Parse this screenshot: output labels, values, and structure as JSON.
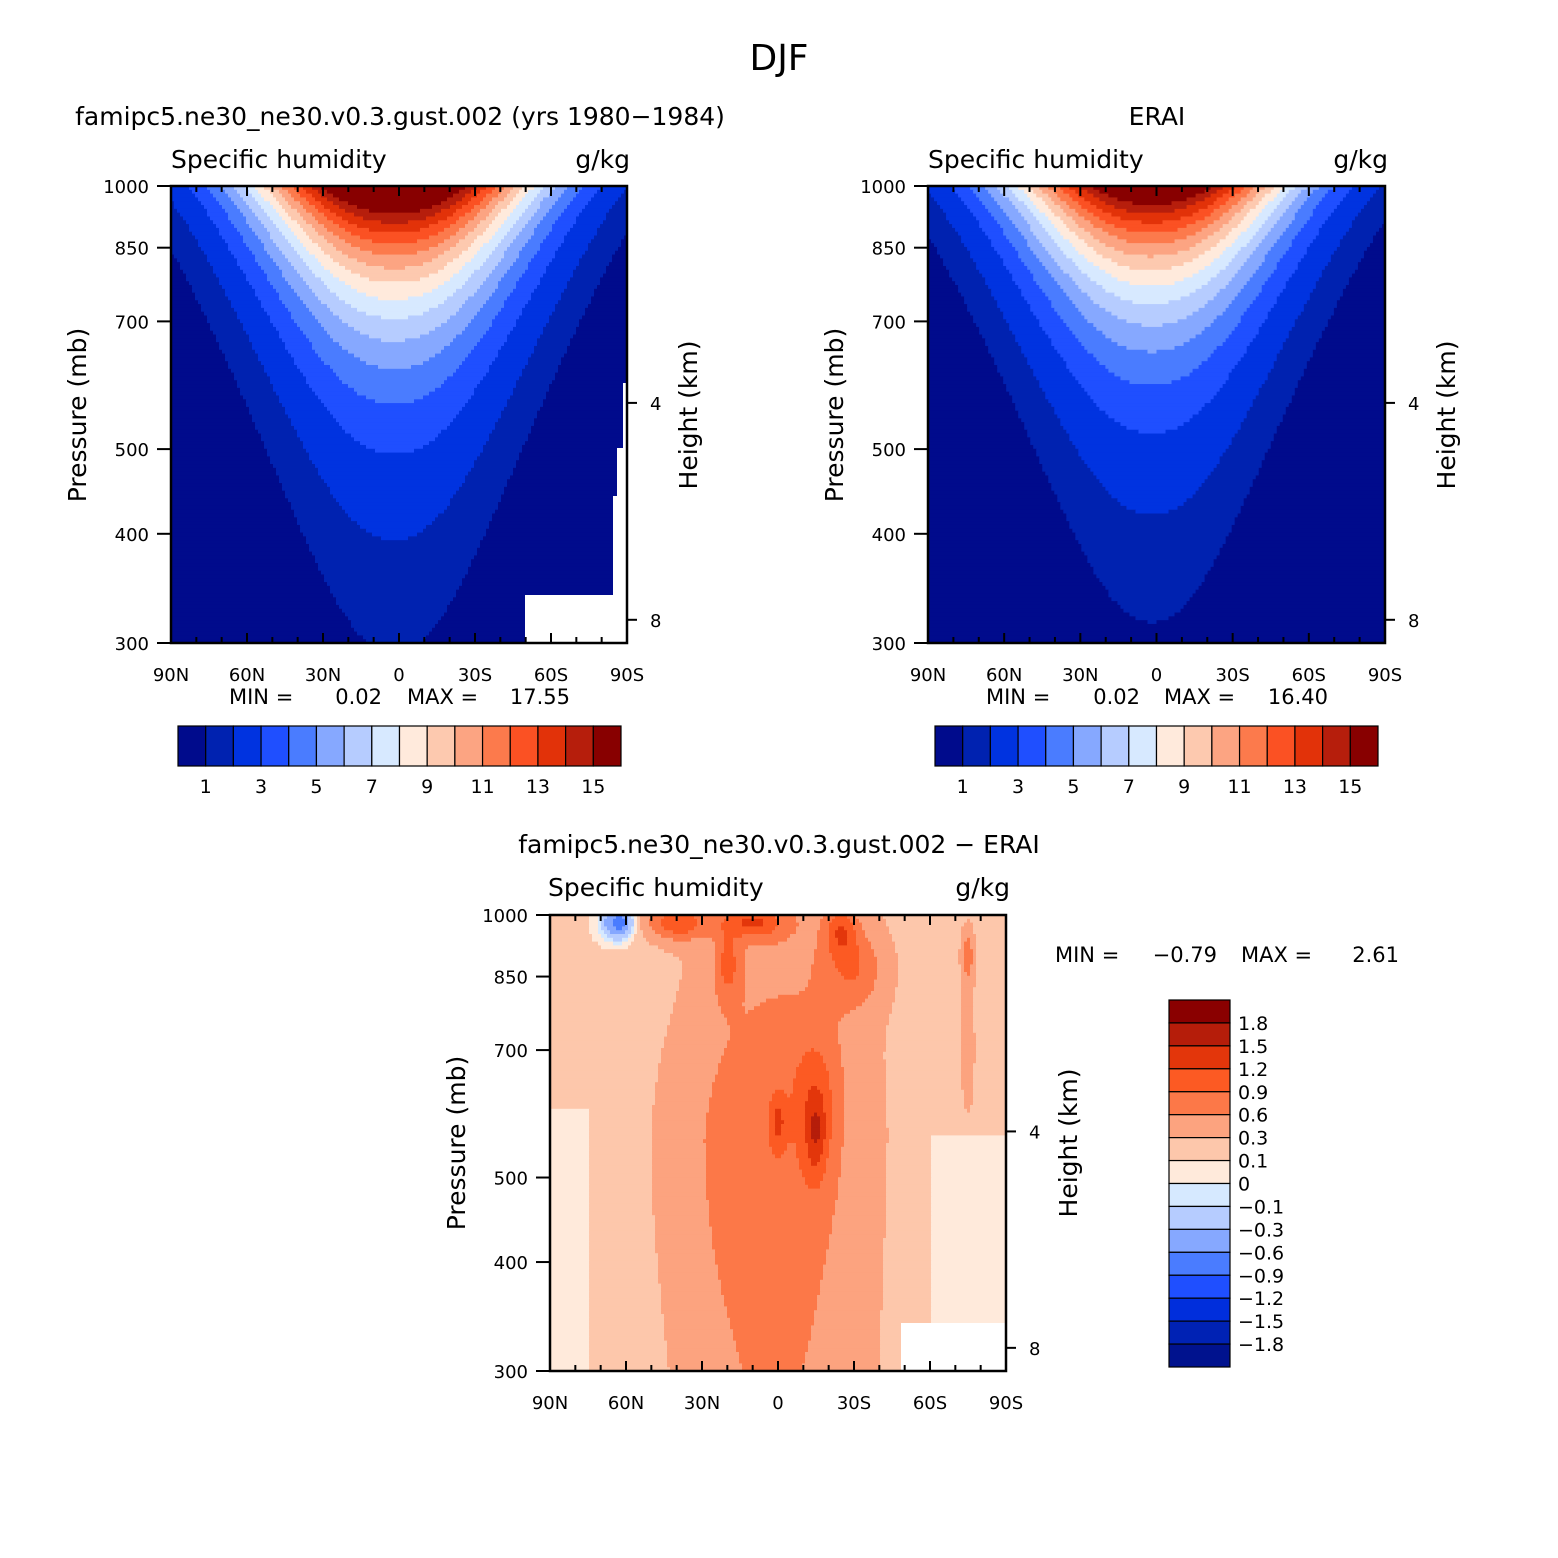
{
  "page_title": "DJF",
  "colors": {
    "abs_levels": [
      "#000b8c",
      "#0022b0",
      "#0033e0",
      "#1f4fff",
      "#4a7cff",
      "#86a8ff",
      "#b6ccff",
      "#d7e9ff",
      "#ffeadc",
      "#fdc9af",
      "#fca482",
      "#fc7a4c",
      "#fb5123",
      "#e23209",
      "#b61e0c",
      "#880000"
    ],
    "diff_levels": [
      "#00128e",
      "#0022b4",
      "#002edc",
      "#1f4fff",
      "#4a7cff",
      "#86a8ff",
      "#b6ccff",
      "#d6e9ff",
      "#ffeadb",
      "#fdc7ab",
      "#fca37f",
      "#fc7848",
      "#fc5a23",
      "#e3360b",
      "#b51d0a",
      "#8a0000"
    ]
  },
  "chart_data": [
    {
      "type": "heatmap",
      "panel_title": "famipc5.ne30_ne30.v0.3.gust.002 (yrs 1980-1984)",
      "field_label": "Specific humidity",
      "units": "g/kg",
      "ylabel": "Pressure (mb)",
      "y2label": "Height (km)",
      "x_ticks": [
        "90N",
        "60N",
        "30N",
        "0",
        "30S",
        "60S",
        "90S"
      ],
      "y_ticks": [
        "300",
        "400",
        "500",
        "700",
        "850",
        "1000"
      ],
      "y2_ticks": [
        "8",
        "4"
      ],
      "min_label": "MIN =",
      "min_value": "0.02",
      "max_label": "MAX =",
      "max_value": "17.55",
      "colorbar_labels": [
        "1",
        "3",
        "5",
        "7",
        "9",
        "11",
        "13",
        "15"
      ],
      "field": {
        "peak": 17.55,
        "peak_lat": 2,
        "width_top": 32,
        "width_bottom": 58,
        "decay_km": 2.05
      }
    },
    {
      "type": "heatmap",
      "panel_title": "ERAI",
      "field_label": "Specific humidity",
      "units": "g/kg",
      "ylabel": "Pressure (mb)",
      "y2label": "Height (km)",
      "x_ticks": [
        "90N",
        "60N",
        "30N",
        "0",
        "30S",
        "60S",
        "90S"
      ],
      "y_ticks": [
        "300",
        "400",
        "500",
        "700",
        "850",
        "1000"
      ],
      "y2_ticks": [
        "8",
        "4"
      ],
      "min_label": "MIN =",
      "min_value": "0.02",
      "max_label": "MAX =",
      "max_value": "16.40",
      "colorbar_labels": [
        "1",
        "3",
        "5",
        "7",
        "9",
        "11",
        "13",
        "15"
      ],
      "field": {
        "peak": 16.4,
        "peak_lat": 2,
        "width_top": 30,
        "width_bottom": 57,
        "decay_km": 1.95
      }
    },
    {
      "type": "heatmap",
      "panel_title": "famipc5.ne30_ne30.v0.3.gust.002 - ERAI",
      "field_label": "Specific humidity",
      "units": "g/kg",
      "ylabel": "Pressure (mb)",
      "y2label": "Height (km)",
      "x_ticks": [
        "90N",
        "60N",
        "30N",
        "0",
        "30S",
        "60S",
        "90S"
      ],
      "y_ticks": [
        "300",
        "400",
        "500",
        "700",
        "850",
        "1000"
      ],
      "y2_ticks": [
        "8",
        "4"
      ],
      "min_label": "MIN =",
      "min_value": "-0.79",
      "max_label": "MAX =",
      "max_value": "2.61",
      "colorbar_labels": [
        "1.8",
        "1.5",
        "1.2",
        "0.9",
        "0.6",
        "0.3",
        "0.1",
        "0",
        "-0.1",
        "-0.3",
        "-0.6",
        "-0.9",
        "-1.2",
        "-1.5",
        "-1.8"
      ]
    }
  ]
}
